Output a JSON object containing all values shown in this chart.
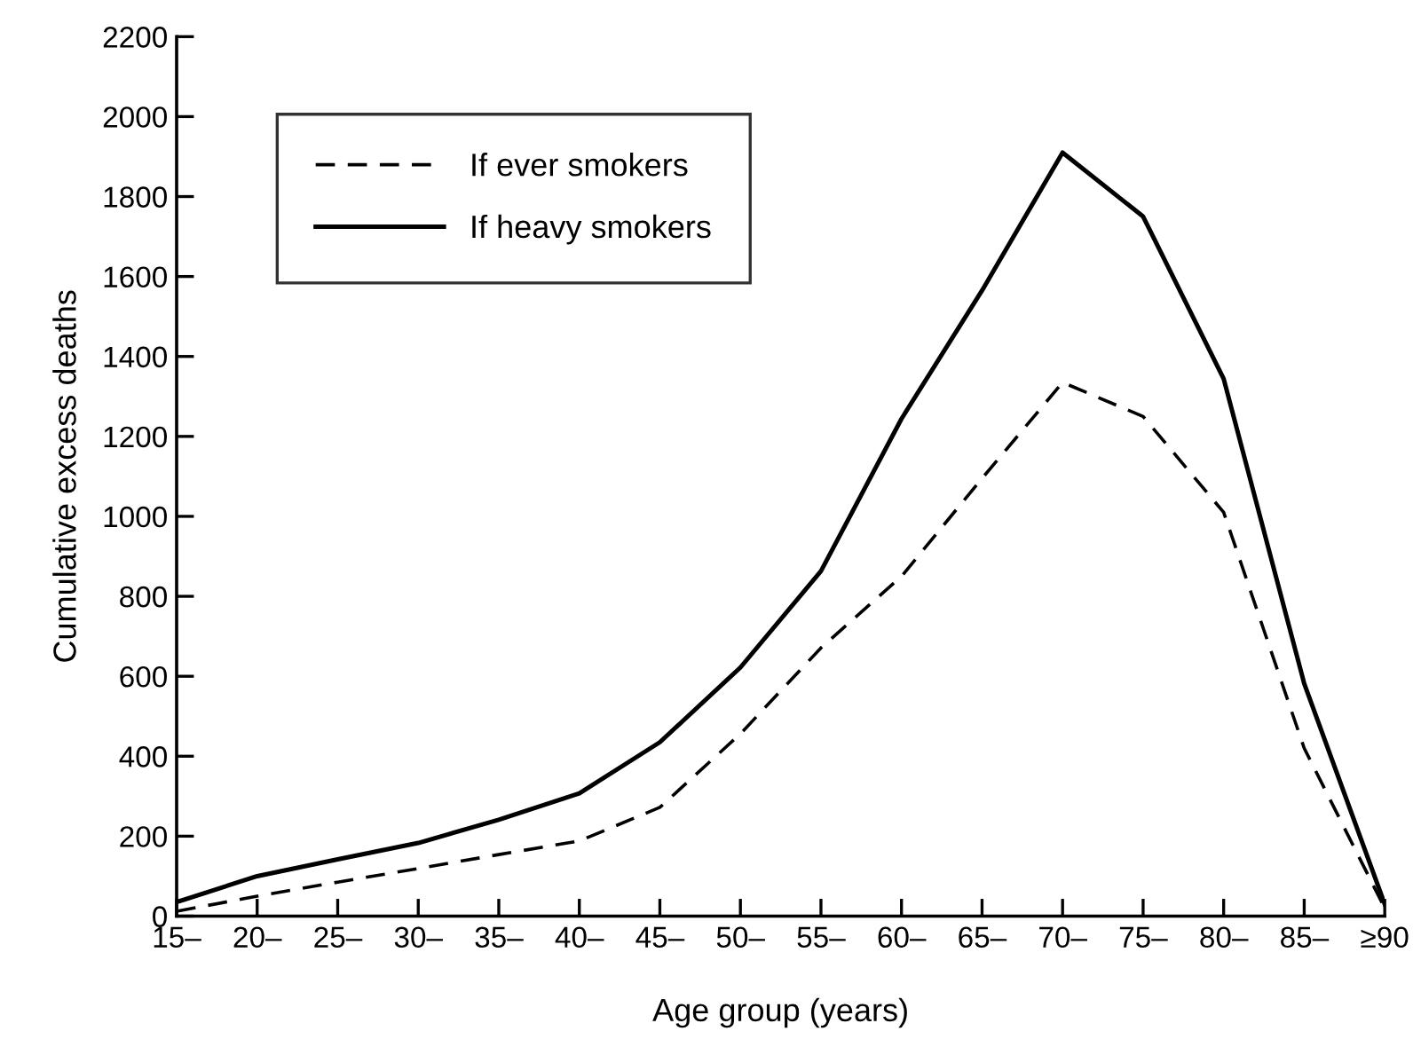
{
  "chart_data": {
    "type": "line",
    "xlabel": "Age group (years)",
    "ylabel": "Cumulative excess deaths",
    "categories": [
      "15–",
      "20–",
      "25–",
      "30–",
      "35–",
      "40–",
      "45–",
      "50–",
      "55–",
      "60–",
      "65–",
      "70–",
      "75–",
      "80–",
      "85–",
      "≥90"
    ],
    "series": [
      {
        "name": "If ever smokers",
        "color": "#000000",
        "line_style": "dashed",
        "values": [
          12,
          50,
          85,
          119,
          154,
          188,
          272,
          456,
          671,
          850,
          1095,
          1335,
          1250,
          1010,
          420,
          20
        ]
      },
      {
        "name": "If heavy smokers",
        "color": "#000000",
        "line_style": "solid",
        "values": [
          35,
          100,
          142,
          183,
          241,
          307,
          435,
          622,
          863,
          1244,
          1565,
          1910,
          1750,
          1344,
          582,
          30
        ]
      }
    ],
    "ylim": [
      0,
      2200
    ],
    "yticks": [
      0,
      200,
      400,
      600,
      800,
      1000,
      1200,
      1400,
      1600,
      1800,
      2000,
      2200
    ],
    "grid": false,
    "legend": "top left",
    "marker": "none"
  }
}
